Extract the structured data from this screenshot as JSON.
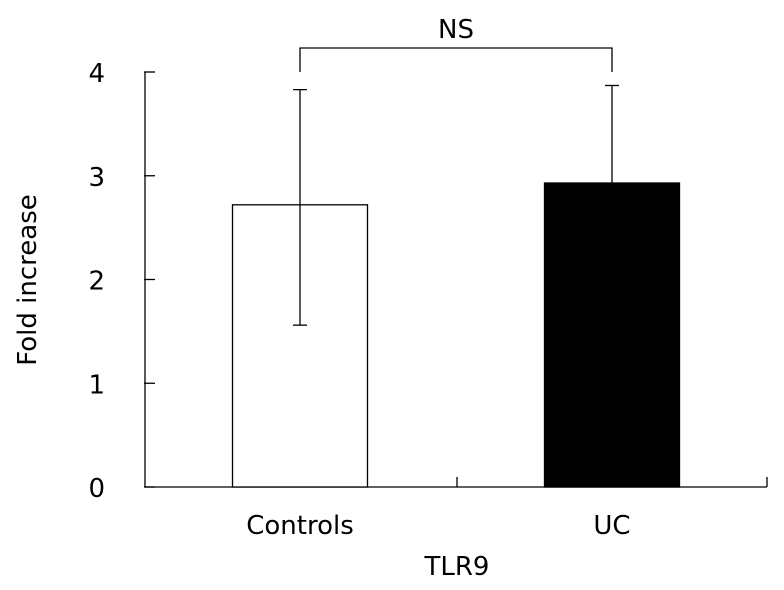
{
  "chart_data": {
    "type": "bar",
    "categories": [
      "Controls",
      "UC"
    ],
    "values": [
      2.72,
      2.93
    ],
    "error_upper": [
      3.83,
      3.87
    ],
    "error_lower": [
      1.56,
      null
    ],
    "bar_fill": [
      "#ffffff",
      "#000000"
    ],
    "bar_stroke": "#000000",
    "title": "",
    "xlabel": "TLR9",
    "ylabel": "Fold increase",
    "ylim": [
      0,
      4
    ],
    "yticks": [
      "0",
      "1",
      "2",
      "3",
      "4"
    ],
    "grid": false,
    "annotation": {
      "label": "NS",
      "between": [
        "Controls",
        "UC"
      ]
    }
  }
}
